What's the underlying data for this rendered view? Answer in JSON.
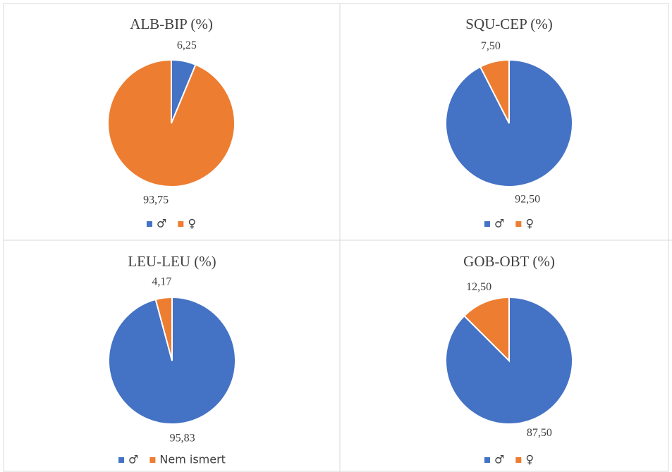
{
  "chart_data": [
    {
      "type": "pie",
      "title": "ALB-BIP (%)",
      "categories": [
        "♂",
        "♀"
      ],
      "values": [
        6.25,
        93.75
      ],
      "value_labels": [
        "6,25",
        "93,75"
      ],
      "colors": [
        "#4472c4",
        "#ed7d31"
      ]
    },
    {
      "type": "pie",
      "title": "SQU-CEP (%)",
      "categories": [
        "♂",
        "♀"
      ],
      "values": [
        92.5,
        7.5
      ],
      "value_labels": [
        "92,50",
        "7,50"
      ],
      "colors": [
        "#4472c4",
        "#ed7d31"
      ]
    },
    {
      "type": "pie",
      "title": "LEU-LEU (%)",
      "categories": [
        "♂",
        "Nem ismert"
      ],
      "values": [
        95.83,
        4.17
      ],
      "value_labels": [
        "95,83",
        "4,17"
      ],
      "colors": [
        "#4472c4",
        "#ed7d31"
      ]
    },
    {
      "type": "pie",
      "title": "GOB-OBT (%)",
      "categories": [
        "♂",
        "♀"
      ],
      "values": [
        87.5,
        12.5
      ],
      "value_labels": [
        "87,50",
        "12,50"
      ],
      "colors": [
        "#4472c4",
        "#ed7d31"
      ]
    }
  ]
}
